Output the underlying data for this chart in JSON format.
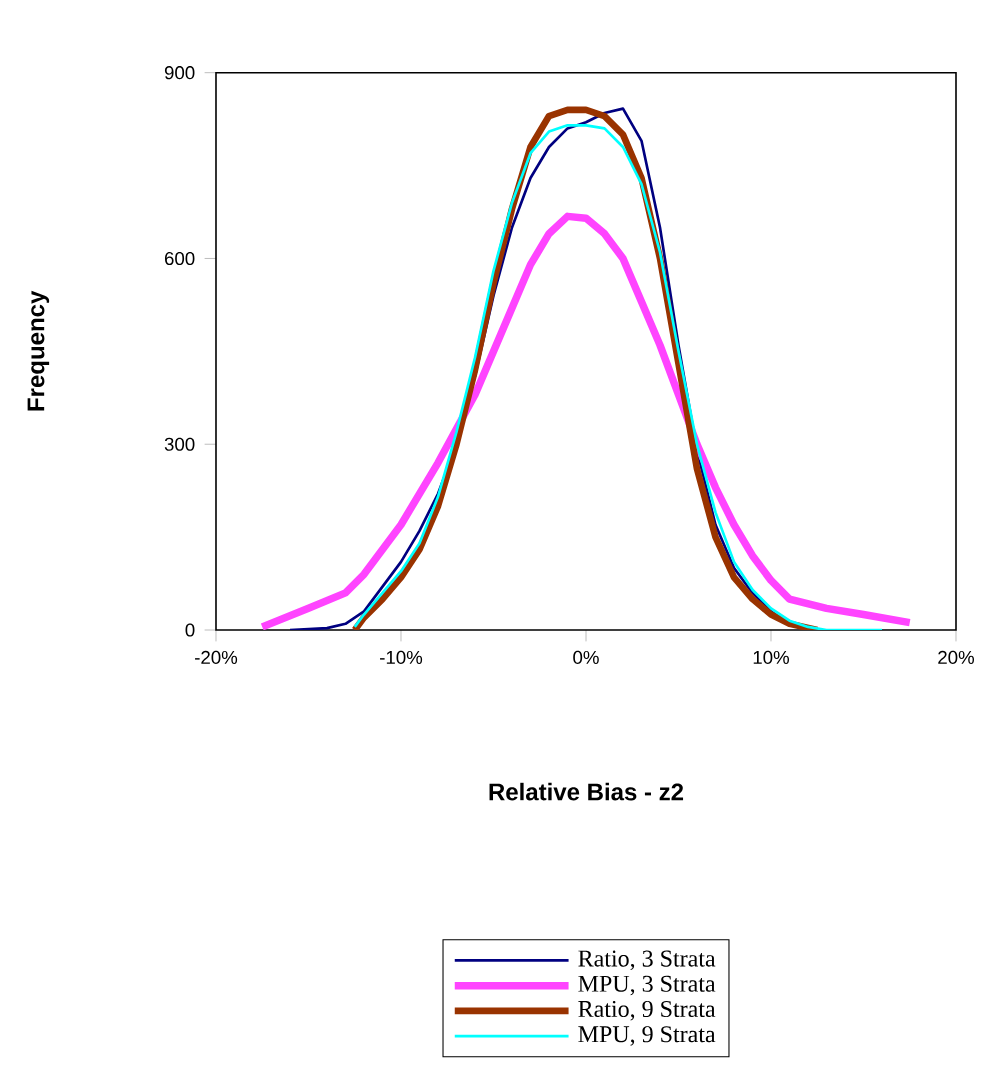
{
  "chart_data": {
    "type": "line",
    "xlabel": "Relative Bias - z2",
    "ylabel": "Frequency",
    "xlim": [
      -20,
      20
    ],
    "ylim": [
      0,
      900
    ],
    "xticks": [
      {
        "value": -20,
        "label": "-20%"
      },
      {
        "value": -10,
        "label": "-10%"
      },
      {
        "value": 0,
        "label": "0%"
      },
      {
        "value": 10,
        "label": "10%"
      },
      {
        "value": 20,
        "label": "20%"
      }
    ],
    "yticks": [
      0,
      300,
      600,
      900
    ],
    "legend": "bottom",
    "grid": false,
    "marker": "none",
    "series": [
      {
        "name": "Ratio, 3 Strata",
        "color": "#000080",
        "x": [
          -16,
          -14,
          -13,
          -12,
          -11,
          -10,
          -9,
          -8,
          -7,
          -6,
          -5,
          -4,
          -3,
          -2,
          -1,
          0,
          1,
          2,
          3,
          4,
          5,
          6,
          7,
          8,
          9,
          10,
          11,
          12
        ],
        "values": [
          0,
          3,
          10,
          30,
          70,
          110,
          160,
          220,
          300,
          410,
          540,
          650,
          730,
          780,
          810,
          820,
          835,
          842,
          790,
          650,
          460,
          290,
          170,
          100,
          60,
          30,
          10,
          2
        ]
      },
      {
        "name": "MPU, 3 Strata",
        "color": "#ff44ff",
        "x": [
          -17.5,
          -15,
          -13,
          -12,
          -10,
          -8,
          -6,
          -4,
          -3,
          -2,
          -1,
          0,
          1,
          2,
          3,
          4,
          5,
          6,
          7,
          8,
          9,
          10,
          11,
          13,
          15,
          17.5
        ],
        "values": [
          5,
          35,
          60,
          90,
          170,
          270,
          380,
          520,
          590,
          640,
          668,
          665,
          640,
          600,
          530,
          460,
          380,
          300,
          230,
          170,
          120,
          80,
          50,
          35,
          25,
          12
        ]
      },
      {
        "name": "Ratio, 9 Strata",
        "color": "#993300",
        "x": [
          -12.5,
          -12,
          -11,
          -10,
          -9,
          -8,
          -7,
          -6,
          -5,
          -4,
          -3,
          -2,
          -1,
          0,
          1,
          2,
          3,
          4,
          5,
          6,
          7,
          8,
          9,
          10,
          11,
          12.5
        ],
        "values": [
          0,
          20,
          50,
          85,
          130,
          200,
          300,
          420,
          560,
          680,
          780,
          830,
          840,
          840,
          830,
          800,
          730,
          600,
          430,
          260,
          150,
          85,
          50,
          25,
          10,
          0
        ]
      },
      {
        "name": "MPU, 9 Strata",
        "color": "#00ffff",
        "x": [
          -12.5,
          -12,
          -11,
          -10,
          -9,
          -8,
          -7,
          -6,
          -5,
          -4,
          -3,
          -2,
          -1,
          0,
          1,
          2,
          3,
          4,
          5,
          6,
          7,
          8,
          9,
          10,
          11,
          12,
          13,
          15,
          16
        ],
        "values": [
          5,
          25,
          60,
          95,
          140,
          215,
          320,
          440,
          580,
          690,
          770,
          805,
          815,
          815,
          810,
          780,
          720,
          610,
          450,
          300,
          190,
          110,
          65,
          35,
          15,
          5,
          0,
          0,
          0
        ]
      }
    ]
  }
}
